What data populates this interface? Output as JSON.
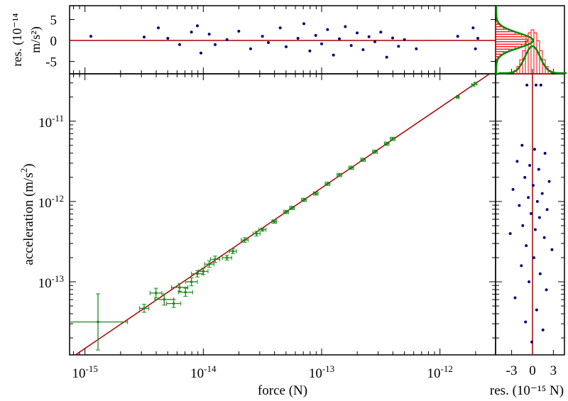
{
  "colors": {
    "fit": "#aa0000",
    "points": "#000080",
    "err": "#1a8a1a",
    "hist": "#ff0000",
    "gauss": "#008800"
  },
  "chart_data": [
    {
      "type": "scatter",
      "title": "",
      "xlabel": "force (N)",
      "ylabel": "acceleration (m/s²)",
      "xscale": "log",
      "yscale": "log",
      "xlim_log10": [
        -15.13,
        -11.53
      ],
      "ylim_log10": [
        -13.91,
        -10.41
      ],
      "xticks": [
        {
          "v": -15,
          "label": "10",
          "exp": "-15"
        },
        {
          "v": -14,
          "label": "10",
          "exp": "-14"
        },
        {
          "v": -13,
          "label": "10",
          "exp": "-13"
        },
        {
          "v": -12,
          "label": "10",
          "exp": "-12"
        }
      ],
      "yticks": [
        {
          "v": -11,
          "label": "10",
          "exp": "-11"
        },
        {
          "v": -12,
          "label": "10",
          "exp": "-12"
        },
        {
          "v": -13,
          "label": "10",
          "exp": "-13"
        }
      ],
      "fit": {
        "log10_slope": 1,
        "log10_intercept": 1.17
      },
      "points_log10": [
        [
          -14.89,
          -13.5,
          0.25,
          0.35
        ],
        [
          -14.5,
          -13.33,
          0.04,
          0.05
        ],
        [
          -14.4,
          -13.14,
          0.05,
          0.06
        ],
        [
          -14.33,
          -13.22,
          0.08,
          0.07
        ],
        [
          -14.25,
          -13.27,
          0.06,
          0.05
        ],
        [
          -14.2,
          -13.07,
          0.07,
          0.05
        ],
        [
          -14.15,
          -13.13,
          0.06,
          0.05
        ],
        [
          -14.1,
          -13.0,
          0.05,
          0.05
        ],
        [
          -14.05,
          -12.9,
          0.05,
          0.04
        ],
        [
          -14.0,
          -12.87,
          0.04,
          0.04
        ],
        [
          -13.95,
          -12.78,
          0.04,
          0.04
        ],
        [
          -13.9,
          -12.72,
          0.04,
          0.04
        ],
        [
          -13.8,
          -12.7,
          0.04,
          0.03
        ],
        [
          -13.75,
          -12.62,
          0.03,
          0.03
        ],
        [
          -13.65,
          -12.48,
          0.03,
          0.03
        ],
        [
          -13.55,
          -12.4,
          0.03,
          0.03
        ],
        [
          -13.5,
          -12.35,
          0.03,
          0.02
        ],
        [
          -13.4,
          -12.25,
          0.02,
          0.02
        ],
        [
          -13.3,
          -12.13,
          0.02,
          0.02
        ],
        [
          -13.25,
          -12.08,
          0.02,
          0.02
        ],
        [
          -13.15,
          -11.98,
          0.02,
          0.02
        ],
        [
          -13.05,
          -11.9,
          0.02,
          0.02
        ],
        [
          -12.95,
          -11.78,
          0.02,
          0.02
        ],
        [
          -12.85,
          -11.67,
          0.02,
          0.02
        ],
        [
          -12.75,
          -11.58,
          0.02,
          0.02
        ],
        [
          -12.65,
          -11.48,
          0.02,
          0.02
        ],
        [
          -12.55,
          -11.38,
          0.02,
          0.02
        ],
        [
          -12.45,
          -11.28,
          0.02,
          0.02
        ],
        [
          -12.4,
          -11.22,
          0.02,
          0.02
        ],
        [
          -11.85,
          -10.7,
          0.01,
          0.01
        ],
        [
          -11.72,
          -10.55,
          0.01,
          0.01
        ],
        [
          -11.7,
          -10.53,
          0.01,
          0.01
        ]
      ]
    },
    {
      "type": "scatter",
      "title": "",
      "ylabel": "res. (10⁻¹⁴ m/s²)",
      "ylabel_parts": {
        "a": "res.",
        "b": "(10",
        "exp": "-14",
        "c": " m/s",
        "exp2": "2",
        ")": ")"
      },
      "yticks": [
        "5",
        "0",
        "-5"
      ],
      "ylim": [
        -8,
        8
      ],
      "points": [
        [
          -14.95,
          1
        ],
        [
          -14.5,
          0.8
        ],
        [
          -14.38,
          3
        ],
        [
          -14.3,
          0.5
        ],
        [
          -14.2,
          -1
        ],
        [
          -14.1,
          2
        ],
        [
          -14.05,
          3.5
        ],
        [
          -14.02,
          -3
        ],
        [
          -13.95,
          1.5
        ],
        [
          -13.9,
          -1
        ],
        [
          -13.8,
          0.2
        ],
        [
          -13.7,
          2.2
        ],
        [
          -13.6,
          -2
        ],
        [
          -13.5,
          1
        ],
        [
          -13.45,
          -0.5
        ],
        [
          -13.35,
          3
        ],
        [
          -13.3,
          -1.5
        ],
        [
          -13.2,
          0.5
        ],
        [
          -13.15,
          4
        ],
        [
          -13.1,
          -2.5
        ],
        [
          -13.05,
          1.2
        ],
        [
          -13.0,
          -0.8
        ],
        [
          -12.95,
          2.6
        ],
        [
          -12.9,
          -3.5
        ],
        [
          -12.85,
          0.4
        ],
        [
          -12.8,
          3.3
        ],
        [
          -12.75,
          -1.2
        ],
        [
          -12.7,
          1.8
        ],
        [
          -12.65,
          -2.2
        ],
        [
          -12.6,
          0.9
        ],
        [
          -12.55,
          -0.3
        ],
        [
          -12.5,
          2
        ],
        [
          -12.45,
          -4
        ],
        [
          -12.4,
          0.6
        ],
        [
          -12.35,
          -1.4
        ],
        [
          -12.3,
          0.2
        ],
        [
          -12.2,
          -2
        ],
        [
          -11.85,
          1
        ],
        [
          -11.72,
          3
        ],
        [
          -11.7,
          -2
        ],
        [
          -11.68,
          0.5
        ]
      ]
    },
    {
      "type": "scatter",
      "xlabel": "res. (10⁻¹⁵ N)",
      "xlabel_parts": {
        "a": "res. (10",
        "exp": "-15",
        "b": " N)"
      },
      "xticks": [
        "-3",
        "0",
        "3"
      ],
      "xlim": [
        -5.3,
        4.9
      ],
      "points": [
        [
          -0.8,
          -10.55
        ],
        [
          0.5,
          -10.55
        ],
        [
          1.2,
          -10.55
        ],
        [
          -1.5,
          -11.3
        ],
        [
          0.3,
          -11.35
        ],
        [
          1.8,
          -11.4
        ],
        [
          -2.2,
          -11.5
        ],
        [
          -0.4,
          -11.55
        ],
        [
          0.9,
          -11.6
        ],
        [
          -1.1,
          -11.7
        ],
        [
          2.4,
          -11.75
        ],
        [
          0.1,
          -11.8
        ],
        [
          -2.8,
          -11.85
        ],
        [
          1.4,
          -11.9
        ],
        [
          -0.6,
          -11.95
        ],
        [
          0.7,
          -12.0
        ],
        [
          -1.9,
          -12.05
        ],
        [
          2.1,
          -12.1
        ],
        [
          -0.2,
          -12.15
        ],
        [
          1.0,
          -12.2
        ],
        [
          -1.4,
          -12.3
        ],
        [
          0.4,
          -12.35
        ],
        [
          -3.2,
          -12.4
        ],
        [
          1.7,
          -12.45
        ],
        [
          -0.9,
          -12.55
        ],
        [
          2.8,
          -12.6
        ],
        [
          0.2,
          -12.7
        ],
        [
          -1.6,
          -12.8
        ],
        [
          1.1,
          -12.9
        ],
        [
          -0.5,
          -13.0
        ],
        [
          2.0,
          -13.1
        ],
        [
          -2.5,
          -13.2
        ],
        [
          0.6,
          -13.35
        ],
        [
          -1.0,
          -13.5
        ],
        [
          1.5,
          -13.6
        ],
        [
          -0.1,
          -13.75
        ]
      ]
    },
    {
      "type": "histogram",
      "orientation": "both",
      "note_labels": []
    }
  ]
}
